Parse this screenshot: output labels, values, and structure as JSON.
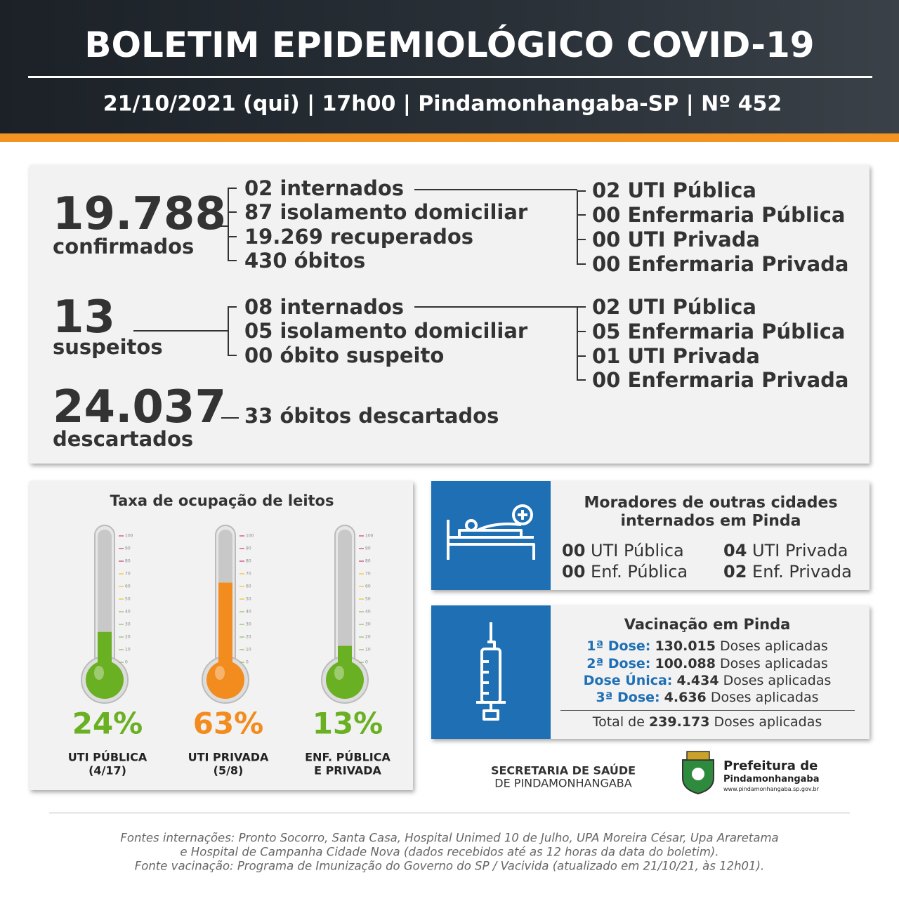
{
  "header": {
    "title": "BOLETIM EPIDEMIOLÓGICO COVID-19",
    "subtitle": "21/10/2021 (qui) | 17h00 | Pindamonhangaba-SP | Nº 452"
  },
  "confirmed": {
    "number": "19.788",
    "label": "confirmados",
    "items": [
      "02 internados",
      "87 isolamento domiciliar",
      "19.269 recuperados",
      "430 óbitos"
    ],
    "hospital": [
      "02 UTI Pública",
      "00 Enfermaria Pública",
      "00 UTI Privada",
      "00 Enfermaria Privada"
    ]
  },
  "suspects": {
    "number": "13",
    "label": "suspeitos",
    "items": [
      "08 internados",
      "05 isolamento domiciliar",
      "00 óbito suspeito"
    ],
    "hospital": [
      "02 UTI Pública",
      "05 Enfermaria Pública",
      "01 UTI Privada",
      "00 Enfermaria Privada"
    ]
  },
  "discarded": {
    "number": "24.037",
    "label": "descartados",
    "items": [
      "33 óbitos descartados"
    ]
  },
  "occupancy": {
    "title": "Taxa de ocupação de leitos",
    "scale_ticks": [
      0,
      10,
      20,
      30,
      40,
      50,
      60,
      70,
      80,
      90,
      100
    ],
    "items": [
      {
        "value": 24,
        "value_label": "24%",
        "color": "#6ab023",
        "name": "UTI PÚBLICA",
        "detail": "(4/17)"
      },
      {
        "value": 63,
        "value_label": "63%",
        "color": "#f28c1e",
        "name": "UTI PRIVADA",
        "detail": "(5/8)"
      },
      {
        "value": 13,
        "value_label": "13%",
        "color": "#6ab023",
        "name": "ENF. PÚBLICA",
        "detail": "E PRIVADA"
      }
    ]
  },
  "residents": {
    "title": [
      "Moradores de outras cidades",
      "internados em Pinda"
    ],
    "items": [
      {
        "count": "00",
        "label": "UTI Pública"
      },
      {
        "count": "00",
        "label": "Enf. Pública"
      },
      {
        "count": "04",
        "label": "UTI Privada"
      },
      {
        "count": "02",
        "label": "Enf. Privada"
      }
    ]
  },
  "vaccination": {
    "title": "Vacinação em Pinda",
    "doses": [
      {
        "label": "1ª Dose:",
        "count": "130.015",
        "suffix": "Doses aplicadas"
      },
      {
        "label": "2ª Dose:",
        "count": "100.088",
        "suffix": "Doses aplicadas"
      },
      {
        "label": "Dose Única:",
        "count": "4.434",
        "suffix": "Doses aplicadas"
      },
      {
        "label": "3ª Dose:",
        "count": "4.636",
        "suffix": "Doses aplicadas"
      }
    ],
    "total": {
      "prefix": "Total de",
      "count": "239.173",
      "suffix": "Doses aplicadas"
    }
  },
  "footer": {
    "secretaria": [
      "SECRETARIA DE SAÚDE",
      "DE PINDAMONHANGABA"
    ],
    "prefeitura": [
      "Prefeitura de",
      "Pindamonhangaba",
      "www.pindamonhangaba.sp.gov.br"
    ],
    "sources": [
      "Fontes internações: Pronto Socorro, Santa Casa, Hospital Unimed 10 de Julho, UPA Moreira César, Upa Araretama",
      "e Hospital de Campanha Cidade Nova (dados recebidos até as 12 horas da data do boletim).",
      "Fonte vacinação: Programa de Imunização do Governo do SP / Vacivida (atualizado em 21/10/21, às 12h01)."
    ]
  }
}
